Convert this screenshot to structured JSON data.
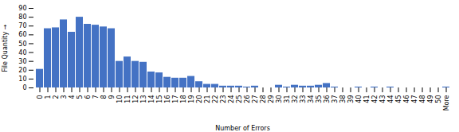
{
  "chart_data": {
    "type": "bar",
    "categories": [
      "0",
      "1",
      "2",
      "3",
      "4",
      "5",
      "6",
      "7",
      "8",
      "9",
      "10",
      "11",
      "12",
      "13",
      "14",
      "15",
      "16",
      "17",
      "18",
      "19",
      "20",
      "21",
      "22",
      "23",
      "24",
      "25",
      "26",
      "27",
      "28",
      "29",
      "30",
      "31",
      "32",
      "33",
      "34",
      "35",
      "36",
      "37",
      "38",
      "39",
      "40",
      "41",
      "42",
      "43",
      "44",
      "45",
      "46",
      "47",
      "48",
      "49",
      "50",
      "More"
    ],
    "values": [
      21,
      67,
      68,
      77,
      63,
      80,
      72,
      71,
      69,
      67,
      30,
      35,
      30,
      29,
      18,
      17,
      12,
      11,
      11,
      13,
      7,
      4,
      4,
      2,
      2,
      2,
      1,
      2,
      0,
      0,
      3,
      1,
      3,
      2,
      2,
      3,
      5,
      1,
      0,
      0,
      1,
      0,
      1,
      0,
      1,
      0,
      0,
      0,
      0,
      0,
      0,
      1
    ],
    "color": "#4472C4",
    "xlabel": "Number of Errors",
    "ylabel": "File Quantity",
    "ylim": [
      0,
      90
    ],
    "yticks": [
      0,
      10,
      20,
      30,
      40,
      50,
      60,
      70,
      80,
      90
    ],
    "grid": false
  }
}
